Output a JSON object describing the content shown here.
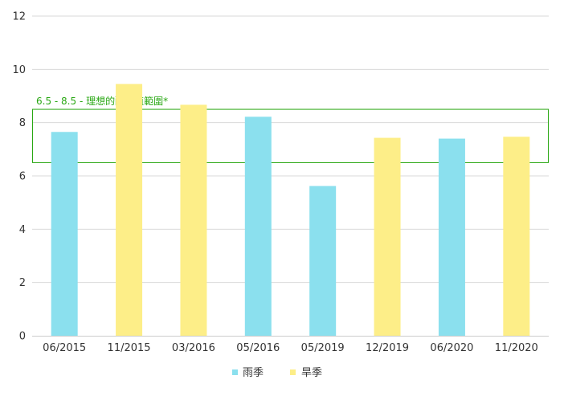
{
  "chart_data": {
    "type": "bar",
    "categories": [
      "06/2015",
      "11/2015",
      "03/2016",
      "05/2016",
      "05/2019",
      "12/2019",
      "06/2020",
      "11/2020"
    ],
    "values": [
      7.65,
      9.45,
      8.67,
      8.22,
      5.62,
      7.43,
      7.4,
      7.47
    ],
    "season_keys": [
      "rain",
      "dry",
      "dry",
      "rain",
      "rain",
      "dry",
      "rain",
      "dry"
    ],
    "ylim": [
      0,
      12
    ],
    "y_ticks": [
      "0",
      "2",
      "4",
      "6",
      "8",
      "10",
      "12"
    ],
    "grid": true,
    "legend_position": "bottom-center",
    "legend": [
      {
        "key": "rain",
        "name": "雨季",
        "color": "#8be0ee"
      },
      {
        "key": "dry",
        "name": "旱季",
        "color": "#fdee88"
      }
    ],
    "annotation": {
      "label": "6.5 - 8.5 - 理想的酸鹼值範圍*",
      "y_min": 6.5,
      "y_max": 8.5,
      "color": "#2aa814"
    },
    "colors": {
      "rain": "#8be0ee",
      "dry": "#fdee88",
      "grid": "#d9d9d9",
      "axis": "#cccccc",
      "text": "#333333"
    }
  }
}
